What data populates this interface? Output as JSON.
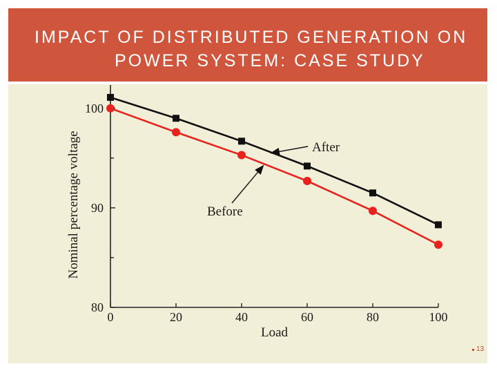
{
  "title_lines": [
    "IMPACT OF DISTRIBUTED GENERATION ON",
    "POWER SYSTEM: CASE STUDY"
  ],
  "slide_number": "13",
  "colors": {
    "banner": "#d0553d",
    "panel": "#f2efd9",
    "after": "#111111",
    "before": "#e8231d"
  },
  "chart_data": {
    "type": "line",
    "xlabel": "Load",
    "ylabel": "Nominal percentage voltage",
    "xlim": [
      0,
      100
    ],
    "ylim": [
      80,
      102
    ],
    "x_ticks": [
      0,
      20,
      40,
      60,
      80,
      100
    ],
    "y_ticks": [
      80,
      90,
      100
    ],
    "y_minor_ticks": [
      85,
      95
    ],
    "grid": false,
    "series": [
      {
        "name": "After",
        "marker": "square",
        "x": [
          0,
          20,
          40,
          60,
          80,
          100
        ],
        "y": [
          101.1,
          99.0,
          96.7,
          94.2,
          91.5,
          88.3
        ]
      },
      {
        "name": "Before",
        "marker": "circle",
        "x": [
          0,
          20,
          40,
          60,
          80,
          100
        ],
        "y": [
          100.0,
          97.6,
          95.3,
          92.7,
          89.7,
          86.3
        ]
      }
    ],
    "annotations": [
      {
        "text": "After",
        "points_to": {
          "series": "After",
          "x": 48.5
        }
      },
      {
        "text": "Before",
        "points_to": {
          "series": "Before",
          "x": 46.0
        }
      }
    ]
  }
}
